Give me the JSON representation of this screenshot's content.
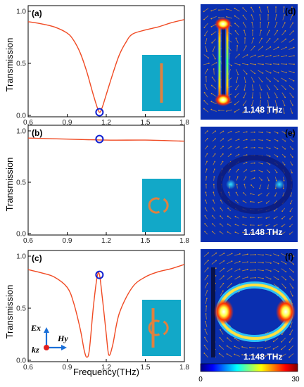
{
  "colors": {
    "curve": "#f04a23",
    "marker": "#1020d0",
    "inset_bg": "#12a8c8",
    "inset_shape": "#e0813f",
    "field_bg": "#0a2fb0",
    "arrow": "#e8a020"
  },
  "colorbar": {
    "min_label": "0",
    "max_label": "30"
  },
  "coordinate_axes": {
    "ex": "Ex",
    "hy": "Hy",
    "kz": "kz"
  },
  "chart_data": [
    {
      "type": "line",
      "panel_label": "(a)",
      "ylabel": "Transmission",
      "xlabel": "",
      "xlim": [
        0.6,
        1.8
      ],
      "ylim": [
        0,
        1.0
      ],
      "xticks": [
        "0.6",
        "0.9",
        "1.2",
        "1.5",
        "1.8"
      ],
      "yticks": [
        "0.0",
        "0.5",
        "1.0"
      ],
      "inset_shape": "rod",
      "x": [
        0.6,
        0.7,
        0.8,
        0.9,
        0.95,
        1.0,
        1.05,
        1.1,
        1.13,
        1.15,
        1.17,
        1.2,
        1.25,
        1.3,
        1.35,
        1.4,
        1.5,
        1.6,
        1.7,
        1.8
      ],
      "y": [
        0.9,
        0.88,
        0.85,
        0.79,
        0.72,
        0.6,
        0.42,
        0.2,
        0.08,
        0.03,
        0.08,
        0.2,
        0.4,
        0.58,
        0.7,
        0.78,
        0.82,
        0.85,
        0.89,
        0.92
      ],
      "marker": {
        "x": 1.148,
        "y": 0.03
      }
    },
    {
      "type": "line",
      "panel_label": "(b)",
      "ylabel": "Transmission",
      "xlabel": "",
      "xlim": [
        0.6,
        1.8
      ],
      "ylim": [
        0,
        1.0
      ],
      "xticks": [
        "0.6",
        "0.9",
        "1.2",
        "1.5",
        "1.8"
      ],
      "yticks": [
        "0.0",
        "0.5",
        "1.0"
      ],
      "inset_shape": "split-ring",
      "x": [
        0.6,
        0.9,
        1.2,
        1.5,
        1.8
      ],
      "y": [
        0.93,
        0.92,
        0.91,
        0.91,
        0.9
      ],
      "marker": {
        "x": 1.148,
        "y": 0.92
      }
    },
    {
      "type": "line",
      "panel_label": "(c)",
      "ylabel": "Transmission",
      "xlabel": "Frequency(THz)",
      "xlim": [
        0.6,
        1.8
      ],
      "ylim": [
        0,
        1.0
      ],
      "xticks": [
        "0.6",
        "0.9",
        "1.2",
        "1.5",
        "1.8"
      ],
      "yticks": [
        "0.0",
        "0.5",
        "1.0"
      ],
      "inset_shape": "rod-ring",
      "x": [
        0.6,
        0.7,
        0.8,
        0.9,
        0.95,
        1.0,
        1.03,
        1.05,
        1.07,
        1.1,
        1.13,
        1.148,
        1.17,
        1.2,
        1.22,
        1.25,
        1.3,
        1.4,
        1.5,
        1.6,
        1.7,
        1.8
      ],
      "y": [
        0.87,
        0.84,
        0.8,
        0.7,
        0.55,
        0.3,
        0.1,
        0.03,
        0.1,
        0.5,
        0.8,
        0.82,
        0.6,
        0.25,
        0.05,
        0.15,
        0.45,
        0.7,
        0.8,
        0.85,
        0.88,
        0.92
      ],
      "marker": {
        "x": 1.148,
        "y": 0.82
      }
    }
  ],
  "field_maps": [
    {
      "panel_label": "(d)",
      "freq_label": "1.148 THz"
    },
    {
      "panel_label": "(e)",
      "freq_label": "1.148 THz"
    },
    {
      "panel_label": "(f)",
      "freq_label": "1.148 THz"
    }
  ]
}
